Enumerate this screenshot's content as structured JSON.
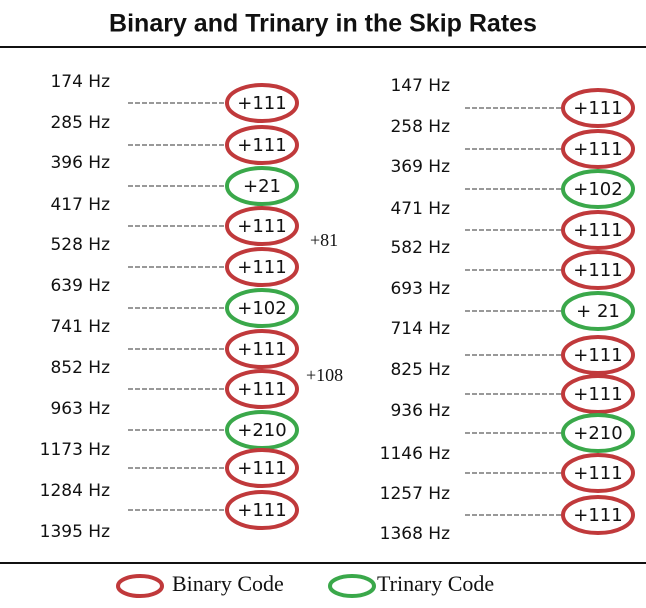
{
  "title": "Binary and Trinary in the Skip Rates",
  "left": {
    "frequencies": [
      "174 Hz",
      "285 Hz",
      "396 Hz",
      "417 Hz",
      "528 Hz",
      "639 Hz",
      "741 Hz",
      "852 Hz",
      "963 Hz",
      "1173 Hz",
      "1284 Hz",
      "1395 Hz"
    ],
    "differences": [
      {
        "label": "+111",
        "color": "#c0393b"
      },
      {
        "label": "+111",
        "color": "#c0393b"
      },
      {
        "label": "+21",
        "color": "#3aa84a"
      },
      {
        "label": "+111",
        "color": "#c0393b"
      },
      {
        "label": "+111",
        "color": "#c0393b"
      },
      {
        "label": "+102",
        "color": "#3aa84a"
      },
      {
        "label": "+111",
        "color": "#c0393b"
      },
      {
        "label": "+111",
        "color": "#c0393b"
      },
      {
        "label": "+210",
        "color": "#3aa84a"
      },
      {
        "label": "+111",
        "color": "#c0393b"
      },
      {
        "label": "+111",
        "color": "#c0393b"
      }
    ]
  },
  "annotations": [
    "+81",
    "+108"
  ],
  "right": {
    "frequencies": [
      "147 Hz",
      "258 Hz",
      "369 Hz",
      "471 Hz",
      "582 Hz",
      "693 Hz",
      "714 Hz",
      "825 Hz",
      "936 Hz",
      "1146 Hz",
      "1257 Hz",
      "1368 Hz"
    ],
    "differences": [
      {
        "label": "+111",
        "color": "#c0393b"
      },
      {
        "label": "+111",
        "color": "#c0393b"
      },
      {
        "label": "+102",
        "color": "#3aa84a"
      },
      {
        "label": "+111",
        "color": "#c0393b"
      },
      {
        "label": "+111",
        "color": "#c0393b"
      },
      {
        "label": "+ 21",
        "color": "#3aa84a"
      },
      {
        "label": "+111",
        "color": "#c0393b"
      },
      {
        "label": "+111",
        "color": "#c0393b"
      },
      {
        "label": "+210",
        "color": "#3aa84a"
      },
      {
        "label": "+111",
        "color": "#c0393b"
      },
      {
        "label": "+111",
        "color": "#c0393b"
      }
    ]
  },
  "legend": [
    {
      "label": "Binary Code",
      "color": "#c0393b"
    },
    {
      "label": "Trinary Code",
      "color": "#3aa84a"
    }
  ]
}
